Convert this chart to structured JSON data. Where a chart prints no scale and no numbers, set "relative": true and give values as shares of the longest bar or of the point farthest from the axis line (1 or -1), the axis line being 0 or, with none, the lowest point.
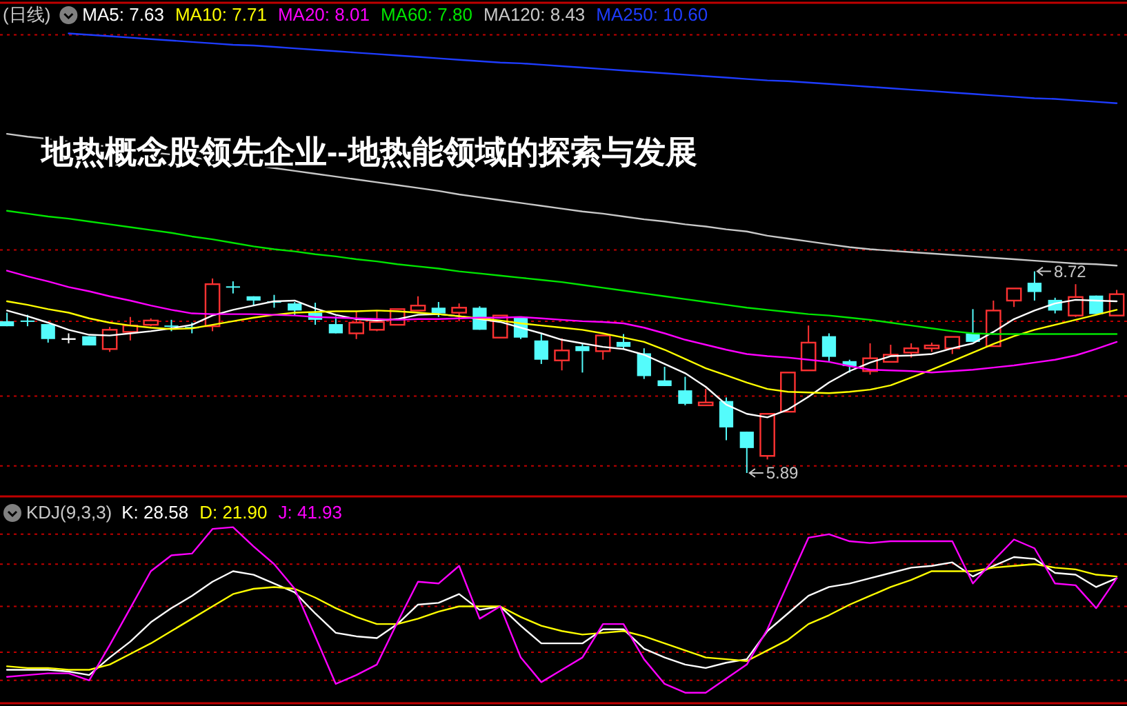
{
  "chart_data": [
    {
      "type": "candlestick",
      "title": "地热概念股领先企业--地热能领域的探索与发展",
      "subtitle": "(日线)",
      "grid": "y",
      "ylim": [
        5.6,
        12.49
      ],
      "yticks": [
        {
          "value": 12.04,
          "label": null
        },
        {
          "value": 9.02,
          "label": null
        },
        {
          "value": 8.02,
          "label": null
        },
        {
          "value": 6.97,
          "label": null
        },
        {
          "value": 5.99,
          "label": null
        }
      ],
      "categories": [
        null,
        null,
        null,
        null,
        null,
        null,
        null,
        null,
        null,
        null,
        null,
        null,
        null,
        null,
        null,
        null,
        null,
        null,
        null,
        null,
        null,
        null,
        null,
        null,
        null,
        null,
        null,
        null,
        null,
        null,
        null,
        null,
        null,
        null,
        null,
        null,
        null,
        null,
        null,
        null,
        null,
        null,
        null,
        null,
        null,
        null,
        null,
        null,
        null,
        null,
        null,
        null,
        null,
        null,
        null
      ],
      "ohlc": [
        [
          8.02,
          8.14,
          7.95,
          7.95
        ],
        [
          8.03,
          8.11,
          7.95,
          8.02
        ],
        [
          7.98,
          7.98,
          7.72,
          7.77
        ],
        [
          7.77,
          7.85,
          7.71,
          7.77
        ],
        [
          7.81,
          7.81,
          7.68,
          7.68
        ],
        [
          7.63,
          7.94,
          7.59,
          7.9
        ],
        [
          7.87,
          8.08,
          7.75,
          7.96
        ],
        [
          7.97,
          8.06,
          7.95,
          8.03
        ],
        [
          7.96,
          8.04,
          7.88,
          7.95
        ],
        [
          7.94,
          8.0,
          7.85,
          7.93
        ],
        [
          7.95,
          8.62,
          7.88,
          8.54
        ],
        [
          8.51,
          8.58,
          8.41,
          8.5
        ],
        [
          8.37,
          8.37,
          8.24,
          8.31
        ],
        [
          8.3,
          8.39,
          8.21,
          8.29
        ],
        [
          8.27,
          8.29,
          8.1,
          8.17
        ],
        [
          8.14,
          8.28,
          7.97,
          8.04
        ],
        [
          7.98,
          8.09,
          7.85,
          7.85
        ],
        [
          7.85,
          8.16,
          7.77,
          8.0
        ],
        [
          7.9,
          8.16,
          7.88,
          8.01
        ],
        [
          7.97,
          8.19,
          7.97,
          8.19
        ],
        [
          8.17,
          8.37,
          8.17,
          8.24
        ],
        [
          8.21,
          8.29,
          8.08,
          8.13
        ],
        [
          8.14,
          8.27,
          8.02,
          8.21
        ],
        [
          8.21,
          8.23,
          7.9,
          7.9
        ],
        [
          7.79,
          8.1,
          7.79,
          8.1
        ],
        [
          8.08,
          8.08,
          7.77,
          7.79
        ],
        [
          7.75,
          7.84,
          7.42,
          7.48
        ],
        [
          7.47,
          7.78,
          7.33,
          7.61
        ],
        [
          7.67,
          7.7,
          7.3,
          7.6
        ],
        [
          7.6,
          7.82,
          7.48,
          7.82
        ],
        [
          7.73,
          7.84,
          7.63,
          7.66
        ],
        [
          7.57,
          7.64,
          7.21,
          7.25
        ],
        [
          7.19,
          7.38,
          7.11,
          7.11
        ],
        [
          7.05,
          7.24,
          6.84,
          6.86
        ],
        [
          6.84,
          7.07,
          6.84,
          6.88
        ],
        [
          6.9,
          6.95,
          6.35,
          6.53
        ],
        [
          6.47,
          6.47,
          5.89,
          6.24
        ],
        [
          6.13,
          6.72,
          6.08,
          6.72
        ],
        [
          6.75,
          7.3,
          6.75,
          7.3
        ],
        [
          7.33,
          7.96,
          7.33,
          7.72
        ],
        [
          7.81,
          7.85,
          7.46,
          7.52
        ],
        [
          7.46,
          7.48,
          7.3,
          7.39
        ],
        [
          7.32,
          7.71,
          7.27,
          7.5
        ],
        [
          7.45,
          7.69,
          7.45,
          7.55
        ],
        [
          7.58,
          7.71,
          7.51,
          7.64
        ],
        [
          7.64,
          7.72,
          7.59,
          7.68
        ],
        [
          7.64,
          7.8,
          7.56,
          7.8
        ],
        [
          7.85,
          8.19,
          7.73,
          7.73
        ],
        [
          7.67,
          8.31,
          7.67,
          8.17
        ],
        [
          8.31,
          8.48,
          8.22,
          8.48
        ],
        [
          8.56,
          8.72,
          8.31,
          8.43
        ],
        [
          8.32,
          8.35,
          8.13,
          8.17
        ],
        [
          8.1,
          8.54,
          8.08,
          8.36
        ],
        [
          8.38,
          8.38,
          8.12,
          8.12
        ],
        [
          8.1,
          8.46,
          8.1,
          8.4
        ]
      ],
      "colors": [
        "#54fcfc",
        "#54fcfc",
        "#54fcfc",
        "#ffffff",
        "#54fcfc",
        "#ff3232",
        "#ff3232",
        "#ff3232",
        "#54fcfc",
        "#54fcfc",
        "#ff3232",
        "#54fcfc",
        "#54fcfc",
        "#54fcfc",
        "#54fcfc",
        "#54fcfc",
        "#54fcfc",
        "#ff3232",
        "#ff3232",
        "#ff3232",
        "#ff3232",
        "#54fcfc",
        "#ff3232",
        "#54fcfc",
        "#ff3232",
        "#54fcfc",
        "#54fcfc",
        "#ff3232",
        "#54fcfc",
        "#ff3232",
        "#54fcfc",
        "#54fcfc",
        "#54fcfc",
        "#54fcfc",
        "#ff3232",
        "#54fcfc",
        "#54fcfc",
        "#ff3232",
        "#ff3232",
        "#ff3232",
        "#54fcfc",
        "#54fcfc",
        "#ff3232",
        "#ff3232",
        "#ff3232",
        "#ff3232",
        "#ff3232",
        "#54fcfc",
        "#ff3232",
        "#ff3232",
        "#54fcfc",
        "#54fcfc",
        "#ff3232",
        "#54fcfc",
        "#ff3232"
      ],
      "series": [
        {
          "name": "MA5: 7.63",
          "type": "line",
          "color": "#ffffff",
          "values": [
            8.17,
            8.09,
            8.0,
            7.9,
            7.83,
            7.82,
            7.85,
            7.88,
            7.92,
            7.97,
            8.1,
            8.18,
            8.24,
            8.3,
            8.31,
            8.2,
            8.11,
            8.05,
            8.03,
            8.05,
            8.11,
            8.12,
            8.09,
            8.05,
            8.01,
            7.93,
            7.85,
            7.76,
            7.71,
            7.66,
            7.63,
            7.55,
            7.42,
            7.29,
            7.1,
            6.85,
            6.72,
            6.67,
            6.78,
            6.96,
            7.16,
            7.32,
            7.44,
            7.53,
            7.54,
            7.56,
            7.64,
            7.71,
            7.87,
            8.05,
            8.17,
            8.27,
            8.32,
            8.31,
            8.3
          ]
        },
        {
          "name": "MA10: 7.71",
          "type": "line",
          "color": "#ffff00",
          "values": [
            8.3,
            8.25,
            8.19,
            8.14,
            8.06,
            8.0,
            7.96,
            7.93,
            7.91,
            7.92,
            7.97,
            8.02,
            8.07,
            8.11,
            8.14,
            8.15,
            8.16,
            8.16,
            8.17,
            8.16,
            8.14,
            8.12,
            8.09,
            8.06,
            8.03,
            7.99,
            7.96,
            7.93,
            7.9,
            7.85,
            7.79,
            7.73,
            7.62,
            7.49,
            7.36,
            7.26,
            7.16,
            7.07,
            7.03,
            7.02,
            7.01,
            7.03,
            7.06,
            7.12,
            7.23,
            7.34,
            7.46,
            7.58,
            7.7,
            7.81,
            7.9,
            7.97,
            8.04,
            8.11,
            8.18
          ]
        },
        {
          "name": "MA20: 8.01",
          "type": "line",
          "color": "#ff00ff",
          "values": [
            8.73,
            8.65,
            8.58,
            8.5,
            8.44,
            8.37,
            8.31,
            8.24,
            8.18,
            8.13,
            8.12,
            8.12,
            8.12,
            8.11,
            8.1,
            8.08,
            8.07,
            8.06,
            8.05,
            8.04,
            8.05,
            8.05,
            8.06,
            8.07,
            8.07,
            8.08,
            8.06,
            8.04,
            8.02,
            8.01,
            7.99,
            7.93,
            7.85,
            7.76,
            7.69,
            7.62,
            7.56,
            7.53,
            7.51,
            7.48,
            7.45,
            7.39,
            7.34,
            7.33,
            7.32,
            7.3,
            7.32,
            7.34,
            7.37,
            7.4,
            7.44,
            7.48,
            7.54,
            7.63,
            7.73
          ]
        },
        {
          "name": "MA60: 7.80",
          "type": "line",
          "color": "#00e600",
          "values": [
            9.57,
            9.53,
            9.49,
            9.46,
            9.42,
            9.38,
            9.34,
            9.3,
            9.26,
            9.21,
            9.17,
            9.12,
            9.07,
            9.03,
            9.0,
            8.96,
            8.93,
            8.89,
            8.86,
            8.82,
            8.79,
            8.76,
            8.72,
            8.69,
            8.66,
            8.63,
            8.6,
            8.57,
            8.53,
            8.49,
            8.45,
            8.41,
            8.37,
            8.33,
            8.29,
            8.25,
            8.21,
            8.18,
            8.15,
            8.12,
            8.1,
            8.07,
            8.04,
            8.0,
            7.96,
            7.92,
            7.88,
            7.85,
            7.84,
            7.84,
            7.84,
            7.84,
            7.84,
            7.84,
            7.84
          ]
        },
        {
          "name": "MA120: 8.43",
          "type": "line",
          "color": "#c8c8c8",
          "values": [
            10.65,
            10.61,
            10.58,
            10.54,
            10.5,
            10.47,
            10.43,
            10.39,
            10.36,
            10.32,
            10.28,
            10.25,
            10.21,
            10.17,
            10.13,
            10.09,
            10.05,
            10.01,
            9.97,
            9.93,
            9.89,
            9.85,
            9.8,
            9.76,
            9.72,
            9.68,
            9.64,
            9.6,
            9.56,
            9.53,
            9.49,
            9.45,
            9.42,
            9.38,
            9.35,
            9.31,
            9.28,
            9.22,
            9.18,
            9.14,
            9.1,
            9.06,
            9.03,
            9.01,
            8.99,
            8.97,
            8.95,
            8.93,
            8.91,
            8.89,
            8.87,
            8.85,
            8.83,
            8.82,
            8.8
          ]
        },
        {
          "name": "MA250: 10.60",
          "type": "line",
          "color": "#1e3cff",
          "values": [
            null,
            null,
            null,
            12.06,
            12.04,
            12.02,
            12.0,
            11.98,
            11.96,
            11.94,
            11.92,
            11.9,
            11.89,
            11.87,
            11.85,
            11.83,
            11.81,
            11.79,
            11.77,
            11.75,
            11.73,
            11.71,
            11.69,
            11.67,
            11.65,
            11.64,
            11.62,
            11.6,
            11.58,
            11.56,
            11.54,
            11.52,
            11.5,
            11.48,
            11.46,
            11.44,
            11.42,
            11.4,
            11.39,
            11.37,
            11.35,
            11.33,
            11.31,
            11.29,
            11.27,
            11.25,
            11.23,
            11.21,
            11.19,
            11.17,
            11.15,
            11.14,
            11.12,
            11.1,
            11.08
          ]
        }
      ],
      "annotations": [
        "8.72",
        "5.89"
      ]
    },
    {
      "type": "line",
      "title": "KDJ(9,3,3)",
      "relative": true,
      "categories": [
        null,
        null,
        null,
        null,
        null,
        null,
        null,
        null,
        null,
        null,
        null,
        null,
        null,
        null,
        null,
        null,
        null,
        null,
        null,
        null,
        null,
        null,
        null,
        null,
        null,
        null,
        null,
        null,
        null,
        null,
        null,
        null,
        null,
        null,
        null,
        null,
        null,
        null,
        null,
        null,
        null,
        null,
        null,
        null,
        null,
        null,
        null,
        null,
        null,
        null,
        null,
        null,
        null,
        null,
        null
      ],
      "ref_lines": [
        {
          "axis": "y",
          "value": 0.96,
          "color": "#c00000",
          "line_style": "dotted"
        },
        {
          "axis": "y",
          "value": 0.79,
          "color": "#c00000",
          "line_style": "dotted"
        },
        {
          "axis": "y",
          "value": 0.55,
          "color": "#c00000",
          "line_style": "dotted"
        },
        {
          "axis": "y",
          "value": 0.29,
          "color": "#c00000",
          "line_style": "dotted"
        },
        {
          "axis": "y",
          "value": 0.13,
          "color": "#c00000",
          "line_style": "dotted"
        }
      ],
      "series": [
        {
          "name": "K: 28.58",
          "color": "#ffffff",
          "values": [
            0.19,
            0.19,
            0.19,
            0.18,
            0.16,
            0.26,
            0.35,
            0.46,
            0.54,
            0.61,
            0.69,
            0.75,
            0.73,
            0.68,
            0.63,
            0.51,
            0.4,
            0.38,
            0.37,
            0.45,
            0.56,
            0.57,
            0.62,
            0.53,
            0.55,
            0.44,
            0.34,
            0.34,
            0.34,
            0.42,
            0.42,
            0.31,
            0.26,
            0.22,
            0.2,
            0.23,
            0.25,
            0.41,
            0.51,
            0.61,
            0.66,
            0.68,
            0.71,
            0.74,
            0.77,
            0.78,
            0.8,
            0.72,
            0.78,
            0.83,
            0.82,
            0.74,
            0.73,
            0.66,
            0.71
          ]
        },
        {
          "name": "D: 21.90",
          "color": "#ffff00",
          "values": [
            0.21,
            0.2,
            0.2,
            0.19,
            0.19,
            0.22,
            0.28,
            0.34,
            0.41,
            0.48,
            0.55,
            0.62,
            0.65,
            0.66,
            0.65,
            0.6,
            0.54,
            0.49,
            0.45,
            0.45,
            0.48,
            0.52,
            0.55,
            0.55,
            0.55,
            0.49,
            0.44,
            0.41,
            0.39,
            0.4,
            0.41,
            0.38,
            0.34,
            0.3,
            0.26,
            0.25,
            0.24,
            0.3,
            0.36,
            0.45,
            0.5,
            0.56,
            0.61,
            0.66,
            0.7,
            0.75,
            0.75,
            0.75,
            0.77,
            0.78,
            0.79,
            0.77,
            0.76,
            0.73,
            0.72
          ]
        },
        {
          "name": "J: 41.93",
          "color": "#ff00ff",
          "values": [
            0.15,
            0.16,
            0.17,
            0.17,
            0.13,
            0.33,
            0.54,
            0.75,
            0.84,
            0.85,
            0.99,
            1.0,
            0.89,
            0.79,
            0.65,
            0.38,
            0.11,
            0.16,
            0.22,
            0.46,
            0.69,
            0.68,
            0.78,
            0.48,
            0.55,
            0.26,
            0.12,
            0.19,
            0.26,
            0.45,
            0.45,
            0.25,
            0.11,
            0.06,
            0.06,
            0.14,
            0.22,
            0.42,
            0.68,
            0.94,
            0.96,
            0.92,
            0.91,
            0.92,
            0.92,
            0.92,
            0.92,
            0.68,
            0.81,
            0.93,
            0.88,
            0.68,
            0.67,
            0.54,
            0.71
          ]
        }
      ]
    }
  ]
}
